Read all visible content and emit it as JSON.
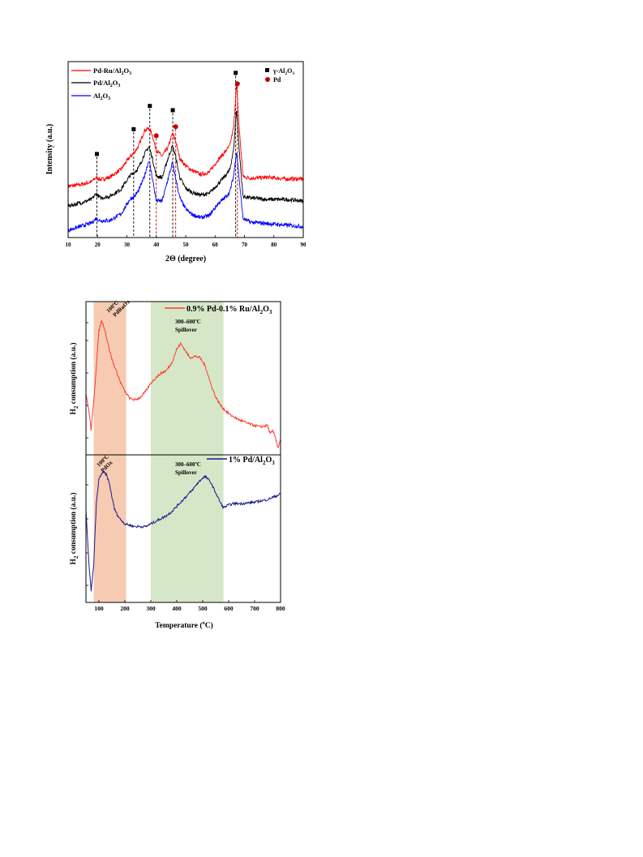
{
  "chart_data": [
    {
      "type": "line",
      "xlabel": "2Θ (degree)",
      "ylabel": "Intensity (a.u.)",
      "xlim": [
        10,
        90
      ],
      "xticks": [
        10,
        20,
        30,
        40,
        50,
        60,
        70,
        80,
        90
      ],
      "legend": "top-left",
      "series": [
        {
          "name": "Pd-Ru/Al2O3",
          "color": "#ff0000",
          "x": [
            10,
            14,
            18,
            19.5,
            21,
            24,
            28,
            31,
            32.5,
            34,
            36,
            37.5,
            38.5,
            40,
            42,
            44,
            45.5,
            46.5,
            48,
            50,
            52,
            55,
            58,
            61,
            63,
            65,
            66.3,
            67.3,
            68.2,
            69.5,
            72,
            78,
            84,
            90
          ],
          "y": [
            7.0,
            7.2,
            7.6,
            8.2,
            7.9,
            8.2,
            9.3,
            11.0,
            11.6,
            12.5,
            14.6,
            14.9,
            14.2,
            11.9,
            11.1,
            12.3,
            14.2,
            13.3,
            10.8,
            9.8,
            9.2,
            8.6,
            8.9,
            10.6,
            11.5,
            12.5,
            15.0,
            21.0,
            15.0,
            8.3,
            8.1,
            8.2,
            8.0,
            8.0
          ]
        },
        {
          "name": "Pd/Al2O3",
          "color": "#000000",
          "x": [
            10,
            14,
            18,
            19.5,
            21,
            24,
            28,
            31,
            32.5,
            34,
            36,
            37.5,
            38.5,
            40,
            42,
            44,
            45.5,
            46.5,
            48,
            50,
            52,
            55,
            58,
            61,
            63,
            65,
            66.3,
            67.3,
            68.2,
            69.5,
            72,
            78,
            84,
            90
          ],
          "y": [
            4.3,
            4.7,
            5.2,
            6.0,
            5.4,
            5.6,
            6.6,
            8.4,
            8.9,
            9.5,
            11.4,
            12.4,
            11.1,
            8.4,
            8.2,
            10.8,
            12.5,
            11.2,
            8.2,
            6.7,
            6.2,
            5.8,
            6.0,
            7.3,
            8.2,
            9.2,
            12.0,
            17.6,
            12.0,
            5.6,
            5.4,
            5.2,
            5.2,
            5.0
          ]
        },
        {
          "name": "Al2O3",
          "color": "#0000ff",
          "x": [
            10,
            14,
            18,
            19.5,
            21,
            24,
            28,
            31,
            32.5,
            34,
            36,
            37.5,
            38.5,
            40,
            42,
            44,
            45.5,
            46.5,
            48,
            50,
            52,
            55,
            58,
            61,
            63,
            65,
            66.3,
            67.3,
            68.2,
            69.5,
            72,
            78,
            84,
            90
          ],
          "y": [
            1.0,
            1.5,
            2.0,
            2.6,
            2.3,
            2.3,
            3.2,
            5.2,
            5.6,
            6.4,
            8.4,
            10.6,
            8.5,
            5.0,
            5.0,
            8.0,
            10.2,
            8.3,
            5.4,
            3.9,
            3.2,
            2.7,
            3.0,
            4.6,
            5.3,
            6.2,
            8.4,
            11.8,
            8.0,
            2.6,
            2.1,
            1.9,
            1.7,
            1.5
          ]
        }
      ],
      "markers": [
        {
          "name": "γ-Al2O3",
          "symbol": "square",
          "color": "#000000"
        },
        {
          "name": "Pd",
          "symbol": "circle",
          "color": "#c00000"
        }
      ],
      "gamma_al2o3_peaks": [
        19.8,
        32.3,
        37.8,
        45.6,
        67.0
      ],
      "pd_peaks": [
        40.0,
        46.6,
        67.6
      ]
    },
    {
      "type": "line",
      "xlabel": "Temperature (°C)",
      "ylabel": "H2 consumption (a.u.)",
      "xlim": [
        50,
        800
      ],
      "xticks": [
        100,
        200,
        300,
        400,
        500,
        600,
        700,
        800
      ],
      "shaded_regions": [
        {
          "from": 80,
          "to": 205,
          "color": "#f4c2a3",
          "label_line1": "100ºC",
          "label_line2": "PdRuOx"
        },
        {
          "from": 300,
          "to": 580,
          "color": "#cfe3be",
          "label_line1": "300–600ºC",
          "label_line2": "Spillover"
        }
      ],
      "series": [
        {
          "name": "0.9% Pd-0.1% Ru/Al2O3",
          "color": "#ff3b30",
          "x": [
            50,
            60,
            70,
            80,
            90,
            100,
            110,
            120,
            130,
            140,
            150,
            160,
            170,
            180,
            200,
            220,
            240,
            260,
            280,
            300,
            320,
            340,
            360,
            380,
            400,
            415,
            430,
            450,
            470,
            490,
            510,
            530,
            550,
            570,
            590,
            610,
            640,
            680,
            720,
            750,
            760,
            770,
            780,
            790,
            800
          ],
          "y": [
            0.4,
            0.3,
            0.15,
            0.35,
            0.6,
            0.85,
            0.92,
            0.88,
            0.8,
            0.72,
            0.65,
            0.6,
            0.55,
            0.5,
            0.42,
            0.37,
            0.36,
            0.38,
            0.42,
            0.48,
            0.52,
            0.55,
            0.57,
            0.62,
            0.72,
            0.76,
            0.72,
            0.66,
            0.67,
            0.66,
            0.6,
            0.48,
            0.38,
            0.32,
            0.28,
            0.25,
            0.22,
            0.19,
            0.17,
            0.18,
            0.12,
            0.14,
            0.1,
            0.02,
            0.08
          ]
        },
        {
          "name": "1% Pd/Al2O3",
          "color": "#1a1a8c",
          "x": [
            50,
            60,
            70,
            80,
            90,
            100,
            110,
            120,
            130,
            140,
            150,
            160,
            170,
            180,
            200,
            220,
            240,
            260,
            280,
            300,
            320,
            340,
            360,
            380,
            400,
            420,
            440,
            460,
            480,
            500,
            510,
            530,
            550,
            570,
            580,
            600,
            620,
            650,
            700,
            750,
            800
          ],
          "y": [
            0.65,
            0.3,
            0.05,
            0.25,
            0.7,
            0.88,
            0.92,
            0.93,
            0.91,
            0.85,
            0.75,
            0.66,
            0.62,
            0.59,
            0.55,
            0.54,
            0.53,
            0.53,
            0.53,
            0.55,
            0.57,
            0.59,
            0.61,
            0.64,
            0.68,
            0.72,
            0.76,
            0.8,
            0.85,
            0.89,
            0.9,
            0.86,
            0.78,
            0.7,
            0.67,
            0.69,
            0.7,
            0.7,
            0.71,
            0.73,
            0.77
          ]
        }
      ]
    }
  ]
}
